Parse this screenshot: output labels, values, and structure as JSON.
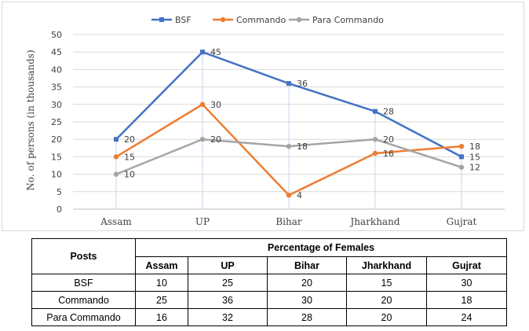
{
  "chart_data": {
    "type": "line",
    "categories": [
      "Assam",
      "UP",
      "Bihar",
      "Jharkhand",
      "Gujrat"
    ],
    "ylabel": "No. of persons (in thousands)",
    "ylim": [
      0,
      50
    ],
    "yticks": [
      "0",
      "5",
      "10",
      "15",
      "20",
      "25",
      "30",
      "35",
      "40",
      "45",
      "50"
    ],
    "legend_position": "top-center",
    "grid": true,
    "series": [
      {
        "name": "BSF",
        "values": [
          20,
          45,
          36,
          28,
          15
        ],
        "color": "#4472C4",
        "marker": "square"
      },
      {
        "name": "Commando",
        "values": [
          15,
          30,
          4,
          16,
          18
        ],
        "color": "#ED7D31",
        "marker": "circle"
      },
      {
        "name": "Para Commando",
        "values": [
          10,
          20,
          18,
          20,
          12
        ],
        "color": "#A5A5A5",
        "marker": "circle"
      }
    ]
  },
  "table": {
    "posts_header": "Posts",
    "group_header": "Percentage of Females",
    "columns": [
      "Assam",
      "UP",
      "Bihar",
      "Jharkhand",
      "Gujrat"
    ],
    "rows": [
      {
        "post": "BSF",
        "values": [
          "10",
          "25",
          "20",
          "15",
          "30"
        ]
      },
      {
        "post": "Commando",
        "values": [
          "25",
          "36",
          "30",
          "20",
          "18"
        ]
      },
      {
        "post": "Para Commando",
        "values": [
          "16",
          "32",
          "28",
          "20",
          "24"
        ]
      }
    ]
  }
}
